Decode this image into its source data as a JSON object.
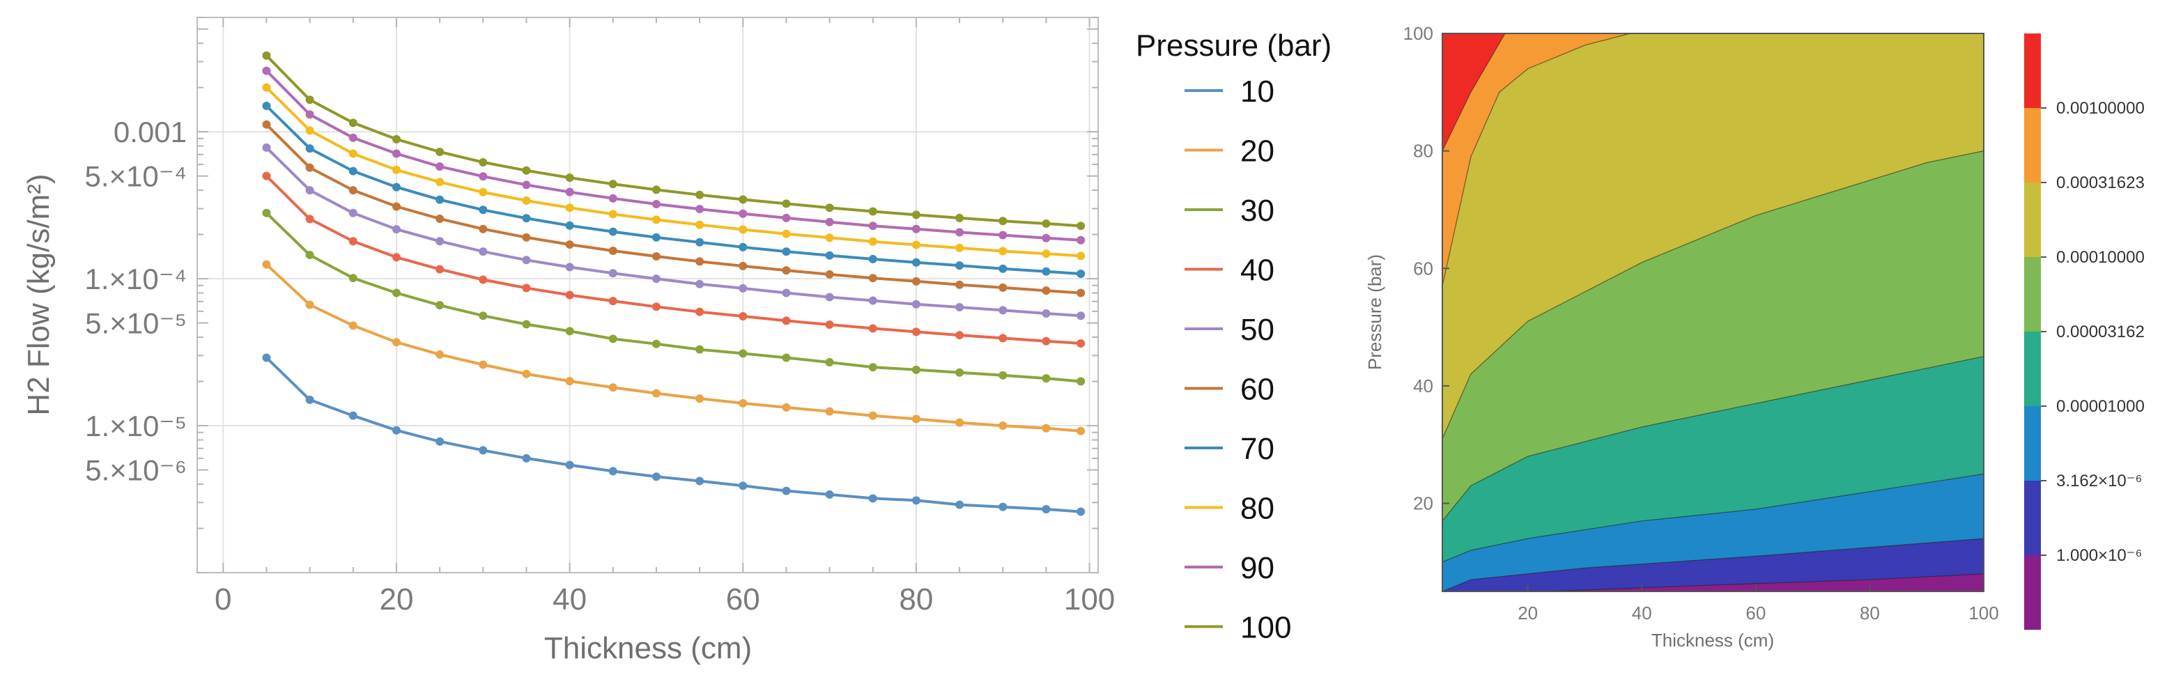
{
  "chart_data": [
    {
      "type": "line",
      "xlabel": "Thickness (cm)",
      "ylabel": "H2 Flow (kg/s/m²)",
      "yscale": "log",
      "xlim": [
        -3,
        101
      ],
      "ylim": [
        1e-06,
        0.006
      ],
      "grid": true,
      "x_ticks": [
        {
          "value": 0,
          "label": "0"
        },
        {
          "value": 20,
          "label": "20"
        },
        {
          "value": 40,
          "label": "40"
        },
        {
          "value": 60,
          "label": "60"
        },
        {
          "value": 80,
          "label": "80"
        },
        {
          "value": 100,
          "label": "100"
        }
      ],
      "y_ticks": [
        {
          "value": 0.001,
          "label": "0.001"
        },
        {
          "value": 0.0005,
          "label": "5.×10⁻⁴"
        },
        {
          "value": 0.0001,
          "label": "1.×10⁻⁴"
        },
        {
          "value": 5e-05,
          "label": "5.×10⁻⁵"
        },
        {
          "value": 1e-05,
          "label": "1.×10⁻⁵"
        },
        {
          "value": 5e-06,
          "label": "5.×10⁻⁶"
        }
      ],
      "x": [
        5,
        10,
        15,
        20,
        25,
        30,
        35,
        40,
        45,
        50,
        55,
        60,
        65,
        70,
        75,
        80,
        85,
        90,
        95,
        99
      ],
      "series": [
        {
          "name": "10",
          "color": "#5b8fc2",
          "values": [
            2.9e-05,
            1.5e-05,
            1.17e-05,
            9.3e-06,
            7.8e-06,
            6.8e-06,
            6e-06,
            5.4e-06,
            4.9e-06,
            4.5e-06,
            4.2e-06,
            3.9e-06,
            3.6e-06,
            3.4e-06,
            3.2e-06,
            3.1e-06,
            2.9e-06,
            2.8e-06,
            2.7e-06,
            2.6e-06
          ]
        },
        {
          "name": "20",
          "color": "#eaa345",
          "values": [
            0.000125,
            6.65e-05,
            4.8e-05,
            3.7e-05,
            3.05e-05,
            2.6e-05,
            2.25e-05,
            2.01e-05,
            1.82e-05,
            1.66e-05,
            1.53e-05,
            1.42e-05,
            1.33e-05,
            1.25e-05,
            1.17e-05,
            1.11e-05,
            1.05e-05,
            1e-05,
            9.6e-06,
            9.2e-06
          ]
        },
        {
          "name": "30",
          "color": "#89a53a",
          "values": [
            0.00028,
            0.000145,
            0.000101,
            8e-05,
            6.6e-05,
            5.6e-05,
            4.9e-05,
            4.4e-05,
            3.9e-05,
            3.6e-05,
            3.3e-05,
            3.1e-05,
            2.9e-05,
            2.7e-05,
            2.5e-05,
            2.4e-05,
            2.3e-05,
            2.2e-05,
            2.1e-05,
            2e-05
          ]
        },
        {
          "name": "40",
          "color": "#e8674c",
          "values": [
            0.0005,
            0.000255,
            0.00018,
            0.00014,
            0.000116,
            9.85e-05,
            8.65e-05,
            7.75e-05,
            7.05e-05,
            6.45e-05,
            5.95e-05,
            5.55e-05,
            5.18e-05,
            4.87e-05,
            4.59e-05,
            4.35e-05,
            4.13e-05,
            3.94e-05,
            3.76e-05,
            3.63e-05
          ]
        },
        {
          "name": "50",
          "color": "#9d88c6",
          "values": [
            0.00078,
            0.0004,
            0.00028,
            0.000217,
            0.00018,
            0.000153,
            0.000134,
            0.00012,
            0.000109,
            0.0001,
            9.2e-05,
            8.6e-05,
            8e-05,
            7.5e-05,
            7.1e-05,
            6.7e-05,
            6.4e-05,
            6.1e-05,
            5.8e-05,
            5.6e-05
          ]
        },
        {
          "name": "60",
          "color": "#c3763a",
          "values": [
            0.00112,
            0.00057,
            0.0004,
            0.00031,
            0.000256,
            0.000218,
            0.000191,
            0.000171,
            0.000155,
            0.000142,
            0.000131,
            0.000122,
            0.000114,
            0.000107,
            0.000101,
            9.6e-05,
            9.1e-05,
            8.7e-05,
            8.3e-05,
            8e-05
          ]
        },
        {
          "name": "70",
          "color": "#3b8bbb",
          "values": [
            0.0015,
            0.00077,
            0.00054,
            0.00042,
            0.000345,
            0.000294,
            0.000258,
            0.00023,
            0.000209,
            0.000191,
            0.000177,
            0.000164,
            0.000153,
            0.000144,
            0.000136,
            0.000129,
            0.000123,
            0.000117,
            0.000112,
            0.000108
          ]
        },
        {
          "name": "80",
          "color": "#f4bb1e",
          "values": [
            0.002,
            0.00102,
            0.00071,
            0.00055,
            0.000455,
            0.000388,
            0.00034,
            0.000304,
            0.000275,
            0.000252,
            0.000233,
            0.000216,
            0.000202,
            0.00019,
            0.000179,
            0.00017,
            0.000162,
            0.000154,
            0.000148,
            0.000143
          ]
        },
        {
          "name": "90",
          "color": "#b26ab3",
          "values": [
            0.0026,
            0.00131,
            0.00091,
            0.00071,
            0.00058,
            0.000497,
            0.000435,
            0.000389,
            0.000352,
            0.000322,
            0.000298,
            0.000277,
            0.000259,
            0.000243,
            0.000229,
            0.000218,
            0.000207,
            0.000198,
            0.000189,
            0.000183
          ]
        },
        {
          "name": "100",
          "color": "#8f9828",
          "values": [
            0.0033,
            0.00165,
            0.00115,
            0.00089,
            0.00073,
            0.00062,
            0.000545,
            0.000487,
            0.000441,
            0.000403,
            0.000372,
            0.000346,
            0.000324,
            0.000304,
            0.000287,
            0.000272,
            0.000259,
            0.000247,
            0.000237,
            0.000229
          ]
        }
      ]
    },
    {
      "type": "contour",
      "xlabel": "Thickness (cm)",
      "ylabel": "Pressure (bar)",
      "xlim": [
        5,
        100
      ],
      "ylim": [
        5,
        100
      ],
      "x_ticks": [
        {
          "value": 20,
          "label": "20"
        },
        {
          "value": 40,
          "label": "40"
        },
        {
          "value": 60,
          "label": "60"
        },
        {
          "value": 80,
          "label": "80"
        },
        {
          "value": 100,
          "label": "100"
        }
      ],
      "y_ticks": [
        {
          "value": 20,
          "label": "20"
        },
        {
          "value": 40,
          "label": "40"
        },
        {
          "value": 60,
          "label": "60"
        },
        {
          "value": 80,
          "label": "80"
        },
        {
          "value": 100,
          "label": "100"
        }
      ],
      "contour_boundaries": [
        {
          "level": "1.000×10⁻⁶",
          "points": [
            [
              23,
              5
            ],
            [
              50,
              6
            ],
            [
              80,
              7
            ],
            [
              100,
              8
            ]
          ]
        },
        {
          "level": "3.162×10⁻⁶",
          "points": [
            [
              5,
              5
            ],
            [
              10,
              7
            ],
            [
              30,
              9
            ],
            [
              60,
              11
            ],
            [
              100,
              14
            ]
          ]
        },
        {
          "level": "0.00001000",
          "points": [
            [
              5,
              10
            ],
            [
              10,
              12
            ],
            [
              20,
              14
            ],
            [
              40,
              17
            ],
            [
              60,
              19
            ],
            [
              80,
              22
            ],
            [
              100,
              25
            ]
          ]
        },
        {
          "level": "0.00003162",
          "points": [
            [
              5,
              17
            ],
            [
              10,
              23
            ],
            [
              20,
              28
            ],
            [
              40,
              33
            ],
            [
              60,
              37
            ],
            [
              80,
              41
            ],
            [
              100,
              45
            ]
          ]
        },
        {
          "level": "0.00010000",
          "points": [
            [
              5,
              31
            ],
            [
              10,
              42
            ],
            [
              20,
              51
            ],
            [
              30,
              56
            ],
            [
              40,
              61
            ],
            [
              50,
              65
            ],
            [
              60,
              69
            ],
            [
              70,
              72
            ],
            [
              80,
              75
            ],
            [
              90,
              78
            ],
            [
              100,
              80
            ]
          ]
        },
        {
          "level": "0.00031623",
          "points": [
            [
              5,
              57
            ],
            [
              10,
              79
            ],
            [
              15,
              90
            ],
            [
              20,
              94
            ],
            [
              30,
              98
            ],
            [
              38,
              100
            ]
          ]
        },
        {
          "level": "0.00100000",
          "points": [
            [
              5,
              80
            ],
            [
              10,
              90
            ],
            [
              16,
              100
            ]
          ]
        }
      ],
      "colorbar": [
        {
          "color": "#8a1f8a",
          "label": ""
        },
        {
          "color": "#3b3bb3",
          "label": "1.000×10⁻⁶"
        },
        {
          "color": "#1f88c8",
          "label": "3.162×10⁻⁶"
        },
        {
          "color": "#29ab8c",
          "label": "0.00001000"
        },
        {
          "color": "#7dba55",
          "label": "0.00003162"
        },
        {
          "color": "#c8bd3c",
          "label": "0.00010000"
        },
        {
          "color": "#f59a35",
          "label": "0.00031623"
        },
        {
          "color": "#ef2a25",
          "label": "0.00100000"
        }
      ]
    }
  ],
  "legend": {
    "title": "Pressure (bar)",
    "placement": "right of left chart"
  }
}
